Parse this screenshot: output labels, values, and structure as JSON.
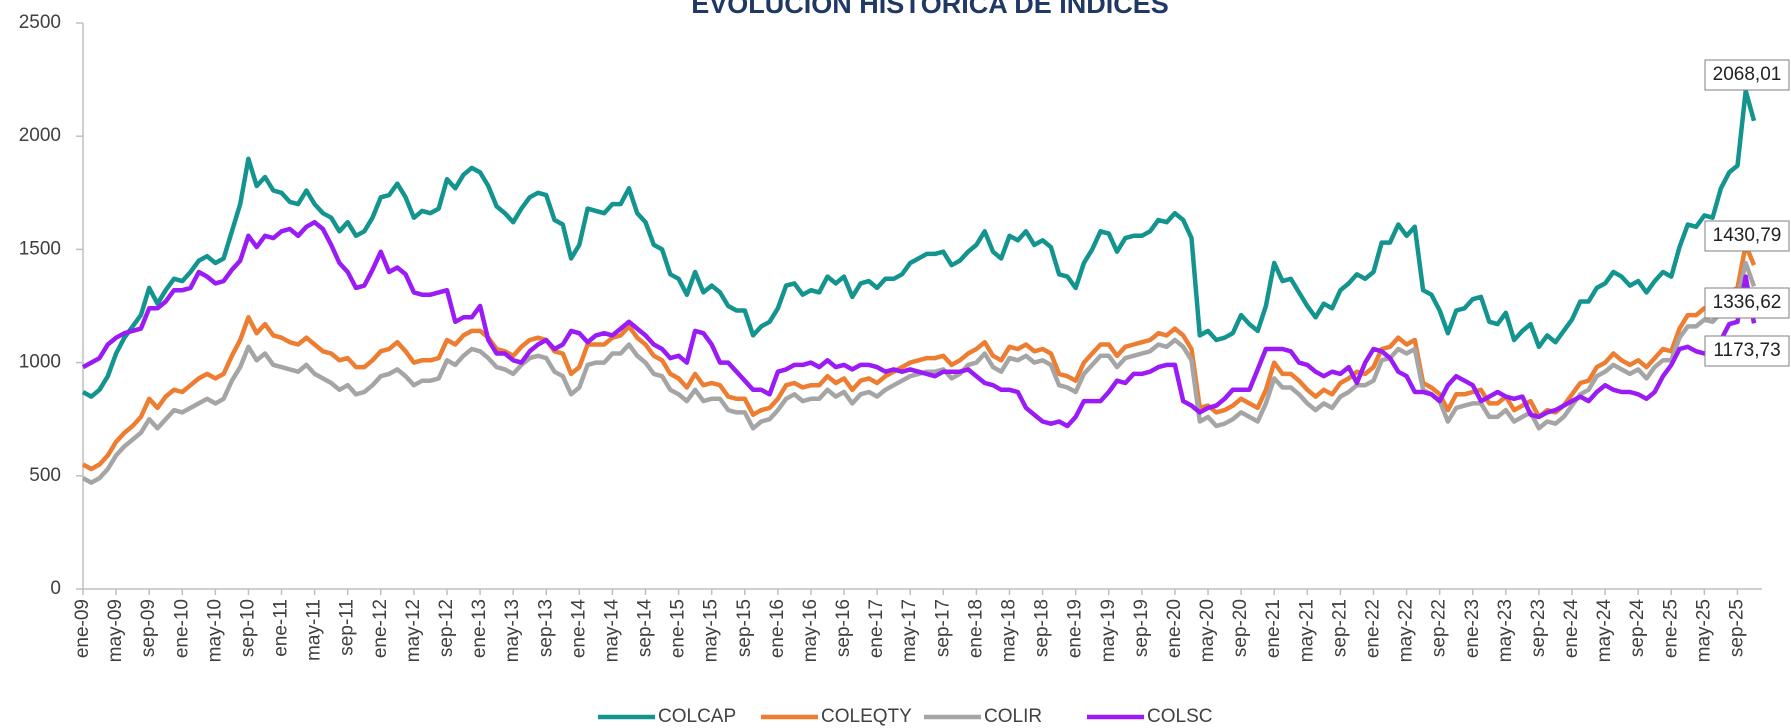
{
  "chart_data": {
    "type": "line",
    "title": "EVOLUCIÓN HISTÓRICA DE ÍNDICES",
    "categories": [
      "ene-09",
      null,
      null,
      null,
      "may-09",
      null,
      null,
      null,
      "sep-09",
      null,
      null,
      null,
      "ene-10",
      null,
      null,
      null,
      "may-10",
      null,
      null,
      null,
      "sep-10",
      null,
      null,
      null,
      "ene-11",
      null,
      null,
      null,
      "may-11",
      null,
      null,
      null,
      "sep-11",
      null,
      null,
      null,
      "ene-12",
      null,
      null,
      null,
      "may-12",
      null,
      null,
      null,
      "sep-12",
      null,
      null,
      null,
      "ene-13",
      null,
      null,
      null,
      "may-13",
      null,
      null,
      null,
      "sep-13",
      null,
      null,
      null,
      "ene-14",
      null,
      null,
      null,
      "may-14",
      null,
      null,
      null,
      "sep-14",
      null,
      null,
      null,
      "ene-15",
      null,
      null,
      null,
      "may-15",
      null,
      null,
      null,
      "sep-15",
      null,
      null,
      null,
      "ene-16",
      null,
      null,
      null,
      "may-16",
      null,
      null,
      null,
      "sep-16",
      null,
      null,
      null,
      "ene-17",
      null,
      null,
      null,
      "may-17",
      null,
      null,
      null,
      "sep-17",
      null,
      null,
      null,
      "ene-18",
      null,
      null,
      null,
      "may-18",
      null,
      null,
      null,
      "sep-18",
      null,
      null,
      null,
      "ene-19",
      null,
      null,
      null,
      "may-19",
      null,
      null,
      null,
      "sep-19",
      null,
      null,
      null,
      "ene-20",
      null,
      null,
      null,
      "may-20",
      null,
      null,
      null,
      "sep-20",
      null,
      null,
      null,
      "ene-21",
      null,
      null,
      null,
      "may-21",
      null,
      null,
      null,
      "sep-21",
      null,
      null,
      null,
      "ene-22",
      null,
      null,
      null,
      "may-22",
      null,
      null,
      null,
      "sep-22",
      null,
      null,
      null,
      "ene-23",
      null,
      null,
      null,
      "may-23",
      null,
      null,
      null,
      "sep-23",
      null,
      null,
      null,
      "ene-24",
      null,
      null,
      null,
      "may-24",
      null,
      null,
      null,
      "sep-24",
      null,
      null,
      null,
      "ene-25",
      null,
      null,
      null,
      "may-25",
      null,
      null,
      null,
      "sep-25",
      null,
      null
    ],
    "series": [
      {
        "name": "COLCAP",
        "color": "#13948f",
        "value_labels": {
          "202": "2068,01"
        },
        "values": [
          870,
          850,
          880,
          940,
          1040,
          1110,
          1160,
          1210,
          1330,
          1260,
          1320,
          1370,
          1360,
          1400,
          1450,
          1470,
          1440,
          1460,
          1580,
          1700,
          1900,
          1780,
          1820,
          1760,
          1750,
          1710,
          1700,
          1760,
          1700,
          1660,
          1640,
          1580,
          1620,
          1560,
          1580,
          1640,
          1730,
          1740,
          1790,
          1730,
          1640,
          1670,
          1660,
          1680,
          1810,
          1770,
          1830,
          1860,
          1840,
          1780,
          1690,
          1660,
          1620,
          1680,
          1730,
          1750,
          1740,
          1630,
          1610,
          1460,
          1520,
          1680,
          1670,
          1660,
          1700,
          1700,
          1770,
          1660,
          1620,
          1520,
          1500,
          1390,
          1370,
          1300,
          1400,
          1310,
          1340,
          1310,
          1250,
          1230,
          1230,
          1120,
          1160,
          1180,
          1240,
          1340,
          1350,
          1300,
          1320,
          1310,
          1380,
          1350,
          1380,
          1290,
          1350,
          1360,
          1330,
          1370,
          1370,
          1390,
          1440,
          1460,
          1480,
          1480,
          1490,
          1430,
          1450,
          1490,
          1520,
          1580,
          1490,
          1460,
          1560,
          1540,
          1580,
          1520,
          1540,
          1510,
          1390,
          1380,
          1330,
          1440,
          1500,
          1580,
          1570,
          1490,
          1550,
          1560,
          1560,
          1580,
          1630,
          1620,
          1660,
          1630,
          1550,
          1120,
          1140,
          1100,
          1110,
          1130,
          1210,
          1170,
          1140,
          1250,
          1440,
          1360,
          1370,
          1310,
          1250,
          1200,
          1260,
          1240,
          1320,
          1350,
          1390,
          1370,
          1400,
          1530,
          1530,
          1610,
          1560,
          1600,
          1320,
          1300,
          1230,
          1130,
          1230,
          1240,
          1280,
          1290,
          1180,
          1170,
          1220,
          1100,
          1140,
          1170,
          1070,
          1120,
          1090,
          1140,
          1190,
          1270,
          1270,
          1330,
          1350,
          1400,
          1380,
          1340,
          1360,
          1310,
          1360,
          1400,
          1380,
          1510,
          1610,
          1600,
          1650,
          1640,
          1770,
          1840,
          1870,
          2200,
          2068.01
        ]
      },
      {
        "name": "COLEQTY",
        "color": "#ed7d31",
        "value_labels": {
          "202": "1430,79"
        },
        "values": [
          550,
          530,
          550,
          590,
          650,
          690,
          720,
          760,
          840,
          800,
          850,
          880,
          870,
          900,
          930,
          950,
          930,
          950,
          1030,
          1100,
          1200,
          1130,
          1170,
          1120,
          1110,
          1090,
          1080,
          1110,
          1080,
          1050,
          1040,
          1010,
          1020,
          980,
          980,
          1010,
          1050,
          1060,
          1090,
          1050,
          1000,
          1010,
          1010,
          1020,
          1100,
          1080,
          1120,
          1140,
          1140,
          1110,
          1060,
          1050,
          1030,
          1070,
          1100,
          1110,
          1100,
          1050,
          1040,
          950,
          980,
          1080,
          1080,
          1080,
          1110,
          1120,
          1160,
          1110,
          1080,
          1030,
          1010,
          950,
          930,
          890,
          950,
          900,
          910,
          900,
          850,
          840,
          840,
          770,
          790,
          800,
          840,
          900,
          910,
          890,
          900,
          900,
          940,
          910,
          930,
          880,
          920,
          930,
          910,
          940,
          960,
          980,
          1000,
          1010,
          1020,
          1020,
          1030,
          990,
          1010,
          1040,
          1060,
          1090,
          1030,
          1010,
          1070,
          1060,
          1080,
          1050,
          1060,
          1040,
          950,
          940,
          920,
          1000,
          1040,
          1080,
          1080,
          1030,
          1070,
          1080,
          1090,
          1100,
          1130,
          1120,
          1150,
          1120,
          1060,
          800,
          810,
          780,
          790,
          810,
          840,
          820,
          800,
          880,
          1000,
          950,
          950,
          920,
          880,
          850,
          880,
          860,
          910,
          930,
          960,
          950,
          980,
          1060,
          1070,
          1110,
          1080,
          1100,
          910,
          890,
          860,
          790,
          860,
          860,
          870,
          880,
          820,
          820,
          850,
          790,
          810,
          830,
          760,
          790,
          780,
          810,
          860,
          910,
          920,
          980,
          1000,
          1040,
          1010,
          990,
          1010,
          980,
          1020,
          1060,
          1050,
          1150,
          1210,
          1210,
          1240,
          1230,
          1270,
          1310,
          1330,
          1520,
          1430.79
        ]
      },
      {
        "name": "COLIR",
        "color": "#a5a5a5",
        "value_labels": {
          "202": "1336,62"
        },
        "values": [
          490,
          470,
          490,
          530,
          590,
          630,
          660,
          690,
          750,
          710,
          750,
          790,
          780,
          800,
          820,
          840,
          820,
          840,
          920,
          980,
          1070,
          1010,
          1040,
          990,
          980,
          970,
          960,
          990,
          950,
          930,
          910,
          880,
          900,
          860,
          870,
          900,
          940,
          950,
          970,
          940,
          900,
          920,
          920,
          930,
          1010,
          990,
          1030,
          1060,
          1050,
          1020,
          980,
          970,
          950,
          990,
          1020,
          1030,
          1020,
          960,
          940,
          860,
          890,
          990,
          1000,
          1000,
          1040,
          1040,
          1080,
          1030,
          1000,
          950,
          940,
          880,
          860,
          830,
          880,
          830,
          840,
          840,
          790,
          780,
          780,
          710,
          740,
          750,
          790,
          840,
          860,
          830,
          840,
          840,
          880,
          850,
          870,
          820,
          860,
          870,
          850,
          880,
          900,
          920,
          940,
          950,
          960,
          960,
          970,
          930,
          950,
          990,
          1000,
          1040,
          980,
          960,
          1020,
          1010,
          1030,
          1000,
          1010,
          990,
          900,
          890,
          870,
          950,
          990,
          1030,
          1030,
          980,
          1020,
          1030,
          1040,
          1050,
          1080,
          1070,
          1100,
          1070,
          1010,
          740,
          760,
          720,
          730,
          750,
          780,
          760,
          740,
          820,
          930,
          890,
          890,
          860,
          820,
          790,
          820,
          800,
          850,
          870,
          900,
          900,
          920,
          1010,
          1020,
          1060,
          1040,
          1060,
          880,
          860,
          830,
          740,
          800,
          810,
          820,
          820,
          760,
          760,
          790,
          740,
          760,
          780,
          710,
          740,
          730,
          760,
          810,
          860,
          880,
          940,
          960,
          990,
          970,
          950,
          970,
          930,
          980,
          1010,
          1010,
          1110,
          1160,
          1160,
          1190,
          1180,
          1220,
          1260,
          1290,
          1440,
          1336.62
        ]
      },
      {
        "name": "COLSC",
        "color": "#9a1bf5",
        "value_labels": {
          "202": "1173,73"
        },
        "values": [
          980,
          1000,
          1020,
          1080,
          1110,
          1130,
          1140,
          1150,
          1240,
          1240,
          1270,
          1320,
          1320,
          1330,
          1400,
          1380,
          1350,
          1360,
          1410,
          1450,
          1560,
          1510,
          1560,
          1550,
          1580,
          1590,
          1560,
          1600,
          1620,
          1590,
          1520,
          1440,
          1400,
          1330,
          1340,
          1410,
          1490,
          1400,
          1420,
          1390,
          1310,
          1300,
          1300,
          1310,
          1320,
          1180,
          1200,
          1200,
          1250,
          1100,
          1040,
          1040,
          1010,
          1000,
          1050,
          1080,
          1100,
          1060,
          1080,
          1140,
          1130,
          1090,
          1120,
          1130,
          1120,
          1150,
          1180,
          1150,
          1120,
          1080,
          1060,
          1020,
          1030,
          1000,
          1140,
          1130,
          1080,
          1000,
          1000,
          960,
          920,
          880,
          880,
          860,
          960,
          970,
          990,
          990,
          1000,
          980,
          1010,
          980,
          990,
          970,
          990,
          990,
          980,
          960,
          970,
          960,
          970,
          960,
          950,
          940,
          960,
          960,
          960,
          970,
          940,
          910,
          900,
          880,
          880,
          870,
          800,
          770,
          740,
          730,
          740,
          720,
          760,
          830,
          830,
          830,
          870,
          920,
          910,
          950,
          950,
          960,
          980,
          990,
          990,
          830,
          810,
          780,
          800,
          810,
          840,
          880,
          880,
          880,
          970,
          1060,
          1060,
          1060,
          1050,
          1000,
          990,
          960,
          940,
          960,
          950,
          980,
          910,
          1000,
          1060,
          1050,
          1020,
          960,
          940,
          870,
          870,
          860,
          830,
          900,
          940,
          920,
          900,
          830,
          850,
          870,
          850,
          840,
          850,
          770,
          760,
          780,
          790,
          810,
          830,
          850,
          830,
          870,
          900,
          880,
          870,
          870,
          860,
          840,
          870,
          940,
          990,
          1060,
          1070,
          1050,
          1040,
          1060,
          1100,
          1170,
          1180,
          1380,
          1173.73
        ]
      }
    ],
    "ylim": [
      0,
      2500
    ],
    "yticks": [
      0,
      500,
      1000,
      1500,
      2000,
      2500
    ],
    "grid": false,
    "legend": "bottom"
  }
}
